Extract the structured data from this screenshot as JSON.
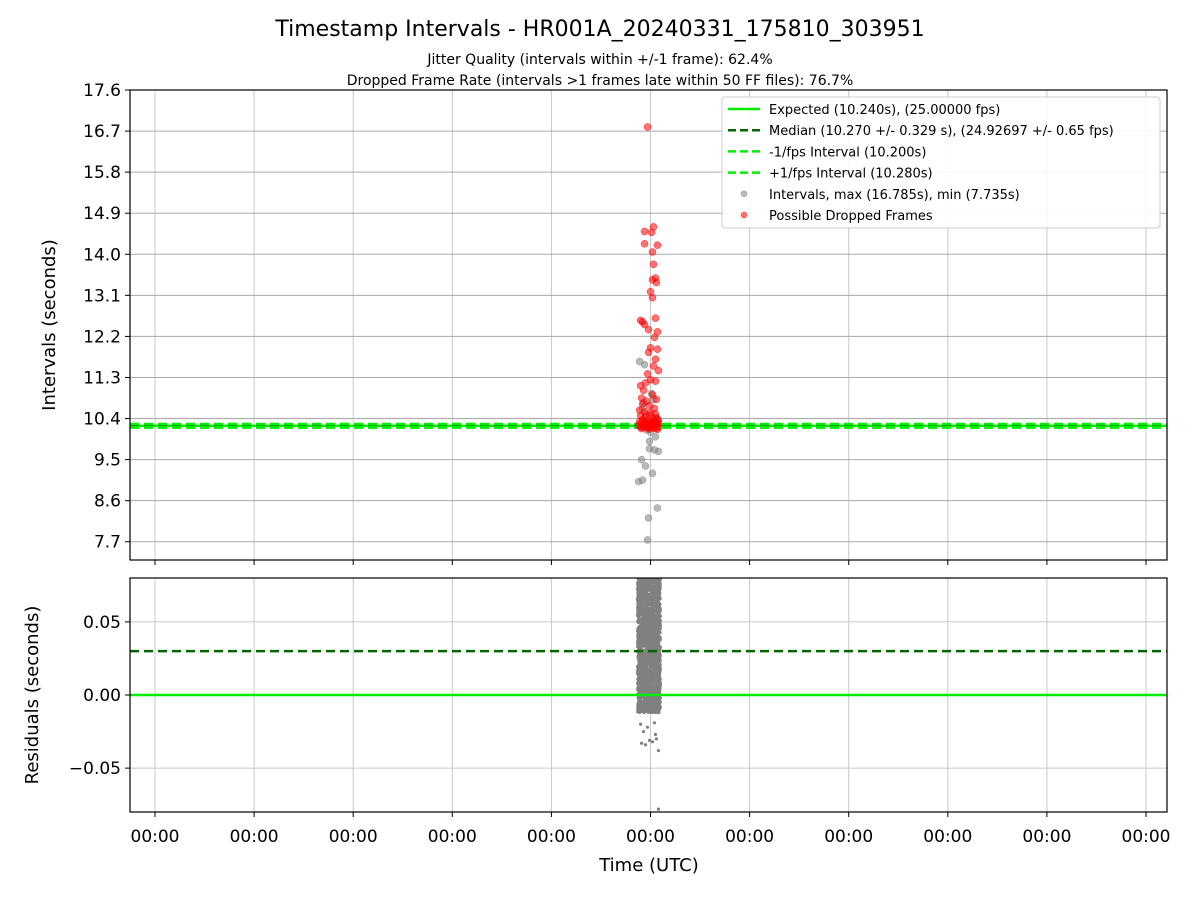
{
  "chart_data": {
    "type": "scatter",
    "title": "Timestamp Intervals - HR001A_20240331_175810_303951",
    "subtitle_lines": [
      "Jitter Quality (intervals within +/-1 frame): 62.4%",
      "Dropped Frame Rate (intervals >1 frames late within 50 FF files): 76.7%"
    ],
    "xlabel": "Time (UTC)",
    "x_tick_labels": [
      "00:00",
      "00:00",
      "00:00",
      "00:00",
      "00:00",
      "00:00",
      "00:00",
      "00:00",
      "00:00",
      "00:00",
      "00:00"
    ],
    "grid": true,
    "panels": [
      {
        "name": "intervals",
        "ylabel": "Intervals (seconds)",
        "ylim": [
          7.3,
          17.6
        ],
        "y_ticks": [
          7.7,
          8.6,
          9.5,
          10.4,
          11.3,
          12.2,
          13.1,
          14.0,
          14.9,
          15.8,
          16.7,
          17.6
        ],
        "y_tick_labels": [
          "7.7",
          "8.6",
          "9.5",
          "10.4",
          "11.3",
          "12.2",
          "13.1",
          "14.0",
          "14.9",
          "15.8",
          "16.7",
          "17.6"
        ],
        "lines": [
          {
            "name": "Expected (10.240s), (25.00000 fps)",
            "y": 10.24,
            "color": "#00ee00",
            "style": "solid"
          },
          {
            "name": "Median (10.270 +/- 0.329 s), (24.92697 +/- 0.65 fps)",
            "y": 10.27,
            "color": "#006400",
            "style": "dashed"
          },
          {
            "name": "-1/fps Interval (10.200s)",
            "y": 10.2,
            "color": "#00ee00",
            "style": "dashed"
          },
          {
            "name": "+1/fps Interval (10.280s)",
            "y": 10.28,
            "color": "#00ee00",
            "style": "dashed"
          }
        ],
        "series": [
          {
            "name": "Intervals, max (16.785s), min (7.735s)",
            "color": "#808080",
            "x": [
              4.88,
              4.92,
              5.02,
              4.91,
              4.95,
              5.08,
              4.99,
              5.04,
              4.98,
              5.07,
              4.97,
              4.95,
              4.93,
              5.06,
              5.0,
              5.05,
              4.94,
              4.89,
              4.92,
              5.03,
              4.96,
              5.01,
              5.06,
              4.99
            ],
            "y": [
              9.02,
              9.05,
              9.2,
              9.5,
              9.36,
              9.68,
              9.74,
              9.71,
              8.22,
              8.44,
              7.74,
              10.5,
              10.75,
              10.3,
              10.1,
              10.0,
              11.58,
              11.65,
              10.62,
              10.82,
              10.15,
              10.95,
              10.4,
              9.9
            ]
          },
          {
            "name": "Possible Dropped Frames",
            "color": "#ff0000",
            "x": [
              4.97,
              5.03,
              4.94,
              5.01,
              4.94,
              5.07,
              5.02,
              5.03,
              5.05,
              5.02,
              5.06,
              5.0,
              5.02,
              4.9,
              4.92,
              4.94,
              5.05,
              4.98,
              5.07,
              5.04,
              5.0,
              5.07,
              4.98,
              5.05,
              4.9,
              4.95,
              5.0,
              5.05,
              4.93,
              4.97,
              5.03,
              5.08,
              4.91,
              4.96,
              5.02,
              5.06,
              4.92,
              4.99,
              5.04,
              4.89,
              4.94,
              5.0,
              5.05,
              4.9,
              4.95,
              5.0,
              5.06,
              4.92,
              4.97,
              5.03,
              5.08,
              4.89,
              4.94,
              4.99,
              5.04,
              5.08,
              4.91,
              4.96,
              5.01,
              5.06,
              4.93,
              4.98,
              5.03,
              5.07,
              4.88,
              4.92,
              4.96,
              5.0,
              5.04,
              5.08,
              4.9,
              4.94,
              4.98,
              5.02,
              5.06,
              4.91,
              4.95,
              4.99,
              5.03,
              5.07
            ],
            "y": [
              16.79,
              14.6,
              14.5,
              14.48,
              14.23,
              14.2,
              14.05,
              13.78,
              13.48,
              13.44,
              13.38,
              13.18,
              13.05,
              12.55,
              12.52,
              12.46,
              12.6,
              12.35,
              12.3,
              12.18,
              11.95,
              11.92,
              11.85,
              11.7,
              11.12,
              11.18,
              11.25,
              11.22,
              11.02,
              11.38,
              11.55,
              11.45,
              10.85,
              10.78,
              10.92,
              10.82,
              10.72,
              10.68,
              10.62,
              10.58,
              10.55,
              10.52,
              10.5,
              10.46,
              10.44,
              10.47,
              10.42,
              10.38,
              10.36,
              10.39,
              10.37,
              10.33,
              10.34,
              10.32,
              10.35,
              10.31,
              10.3,
              10.29,
              10.31,
              10.3,
              10.27,
              10.26,
              10.29,
              10.28,
              10.25,
              10.24,
              10.26,
              10.23,
              10.25,
              10.22,
              10.21,
              10.23,
              10.2,
              10.22,
              10.19,
              10.18,
              10.2,
              10.17,
              10.19,
              10.16
            ]
          }
        ]
      },
      {
        "name": "residuals",
        "ylabel": "Residuals (seconds)",
        "ylim": [
          -0.08,
          0.08
        ],
        "y_ticks": [
          -0.05,
          0.0,
          0.05
        ],
        "y_tick_labels": [
          "−0.05",
          "0.00",
          "0.05"
        ],
        "lines": [
          {
            "name": "Median residual",
            "y": 0.03,
            "color": "#006400",
            "style": "dashed"
          },
          {
            "name": "Zero",
            "y": 0.0,
            "color": "#00ee00",
            "style": "solid"
          }
        ],
        "series": [
          {
            "name": "Residuals",
            "color": "#808080",
            "x_range": [
              4.87,
              5.1
            ],
            "y_range": [
              -0.012,
              0.08
            ],
            "outliers_x": [
              4.91,
              4.95,
              4.99,
              5.02,
              5.06,
              5.08,
              4.93,
              5.05,
              4.9,
              4.97,
              5.04,
              5.08
            ],
            "outliers_y": [
              -0.033,
              -0.034,
              -0.031,
              -0.032,
              -0.03,
              -0.038,
              -0.025,
              -0.027,
              -0.02,
              -0.022,
              -0.019,
              -0.078
            ]
          }
        ]
      }
    ],
    "legend": {
      "placement": "upper-right",
      "entries": [
        {
          "label": "Expected (10.240s), (25.00000 fps)",
          "kind": "line",
          "color": "#00ee00",
          "style": "solid"
        },
        {
          "label": "Median (10.270 +/- 0.329 s), (24.92697 +/- 0.65 fps)",
          "kind": "line",
          "color": "#006400",
          "style": "dashed"
        },
        {
          "label": "-1/fps Interval (10.200s)",
          "kind": "line",
          "color": "#00ee00",
          "style": "dashed"
        },
        {
          "label": "+1/fps Interval (10.280s)",
          "kind": "line",
          "color": "#00ee00",
          "style": "dashed"
        },
        {
          "label": "Intervals, max (16.785s), min (7.735s)",
          "kind": "marker",
          "color": "#808080"
        },
        {
          "label": "Possible Dropped Frames",
          "kind": "marker",
          "color": "#ff0000"
        }
      ]
    }
  }
}
